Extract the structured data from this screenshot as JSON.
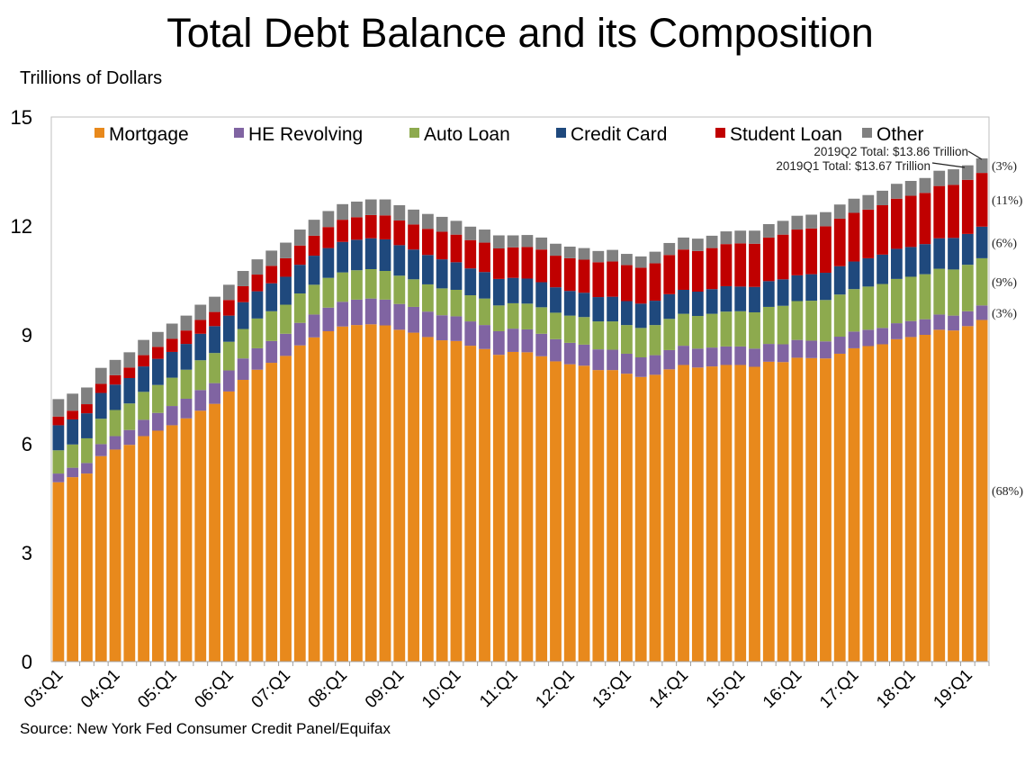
{
  "chart_data": {
    "type": "bar",
    "stacked": true,
    "title": "Total Debt Balance and its Composition",
    "ylabel": "Trillions of Dollars",
    "xlabel": "",
    "ylim": [
      0,
      15
    ],
    "yticks": [
      "0",
      "3",
      "6",
      "9",
      "12",
      "15"
    ],
    "grid": false,
    "legend_placement": "top",
    "source": "Source: New York Fed Consumer Credit Panel/Equifax",
    "xtick_labels": [
      "03:Q1",
      "04:Q1",
      "05:Q1",
      "06:Q1",
      "07:Q1",
      "08:Q1",
      "09:Q1",
      "10:Q1",
      "11:Q1",
      "12:Q1",
      "13:Q1",
      "14:Q1",
      "15:Q1",
      "16:Q1",
      "17:Q1",
      "18:Q1",
      "19:Q1"
    ],
    "first_quarter": "03:Q1",
    "quarters_count_note": "",
    "series": [
      {
        "name": "Mortgage",
        "color": "#E8891C",
        "share_label": "(68%)",
        "values": [
          4.94,
          5.08,
          5.18,
          5.66,
          5.84,
          5.97,
          6.21,
          6.36,
          6.51,
          6.7,
          6.91,
          7.1,
          7.44,
          7.76,
          8.04,
          8.23,
          8.42,
          8.71,
          8.93,
          9.1,
          9.23,
          9.27,
          9.29,
          9.26,
          9.14,
          9.06,
          8.94,
          8.85,
          8.83,
          8.7,
          8.61,
          8.45,
          8.53,
          8.52,
          8.41,
          8.27,
          8.19,
          8.15,
          8.03,
          8.03,
          7.93,
          7.84,
          7.9,
          8.05,
          8.17,
          8.1,
          8.13,
          8.17,
          8.17,
          8.12,
          8.26,
          8.25,
          8.37,
          8.36,
          8.35,
          8.48,
          8.63,
          8.69,
          8.74,
          8.88,
          8.94,
          9.0,
          9.14,
          9.12,
          9.24,
          9.41
        ]
      },
      {
        "name": "HE Revolving",
        "color": "#8064A2",
        "share_label": "(3%)",
        "values": [
          0.24,
          0.26,
          0.29,
          0.33,
          0.37,
          0.41,
          0.45,
          0.49,
          0.53,
          0.54,
          0.57,
          0.57,
          0.58,
          0.59,
          0.59,
          0.6,
          0.61,
          0.62,
          0.63,
          0.65,
          0.68,
          0.7,
          0.71,
          0.71,
          0.71,
          0.71,
          0.7,
          0.69,
          0.68,
          0.67,
          0.66,
          0.65,
          0.64,
          0.63,
          0.62,
          0.61,
          0.59,
          0.58,
          0.57,
          0.56,
          0.55,
          0.54,
          0.54,
          0.53,
          0.53,
          0.52,
          0.52,
          0.51,
          0.51,
          0.5,
          0.49,
          0.49,
          0.49,
          0.48,
          0.47,
          0.47,
          0.46,
          0.45,
          0.45,
          0.44,
          0.44,
          0.43,
          0.42,
          0.41,
          0.41,
          0.4
        ]
      },
      {
        "name": "Auto Loan",
        "color": "#8DAA4E",
        "share_label": "(9%)",
        "values": [
          0.64,
          0.64,
          0.68,
          0.7,
          0.72,
          0.73,
          0.77,
          0.77,
          0.78,
          0.8,
          0.82,
          0.83,
          0.79,
          0.81,
          0.82,
          0.82,
          0.8,
          0.81,
          0.82,
          0.82,
          0.81,
          0.81,
          0.81,
          0.79,
          0.78,
          0.76,
          0.75,
          0.74,
          0.73,
          0.72,
          0.73,
          0.71,
          0.7,
          0.71,
          0.73,
          0.73,
          0.75,
          0.76,
          0.77,
          0.78,
          0.79,
          0.81,
          0.83,
          0.86,
          0.88,
          0.9,
          0.93,
          0.96,
          0.97,
          1.0,
          1.02,
          1.06,
          1.07,
          1.1,
          1.14,
          1.16,
          1.17,
          1.19,
          1.21,
          1.22,
          1.22,
          1.24,
          1.26,
          1.27,
          1.28,
          1.3
        ]
      },
      {
        "name": "Credit Card",
        "color": "#1F497D",
        "share_label": "(6%)",
        "values": [
          0.69,
          0.69,
          0.69,
          0.71,
          0.7,
          0.7,
          0.7,
          0.72,
          0.71,
          0.71,
          0.73,
          0.74,
          0.72,
          0.74,
          0.75,
          0.77,
          0.77,
          0.79,
          0.8,
          0.82,
          0.84,
          0.84,
          0.85,
          0.87,
          0.84,
          0.82,
          0.81,
          0.8,
          0.76,
          0.74,
          0.73,
          0.73,
          0.7,
          0.69,
          0.69,
          0.7,
          0.68,
          0.67,
          0.67,
          0.68,
          0.66,
          0.67,
          0.67,
          0.68,
          0.66,
          0.67,
          0.68,
          0.7,
          0.68,
          0.7,
          0.71,
          0.73,
          0.71,
          0.73,
          0.75,
          0.78,
          0.76,
          0.78,
          0.81,
          0.83,
          0.82,
          0.83,
          0.84,
          0.87,
          0.85,
          0.87
        ]
      },
      {
        "name": "Student Loan",
        "color": "#C00000",
        "share_label": "(11%)",
        "values": [
          0.24,
          0.24,
          0.25,
          0.25,
          0.26,
          0.29,
          0.31,
          0.33,
          0.36,
          0.37,
          0.38,
          0.39,
          0.43,
          0.44,
          0.46,
          0.48,
          0.51,
          0.53,
          0.55,
          0.58,
          0.61,
          0.62,
          0.64,
          0.66,
          0.68,
          0.69,
          0.72,
          0.76,
          0.76,
          0.78,
          0.81,
          0.84,
          0.84,
          0.87,
          0.9,
          0.87,
          0.9,
          0.91,
          0.96,
          0.97,
          0.99,
          0.99,
          1.03,
          1.08,
          1.11,
          1.12,
          1.13,
          1.16,
          1.19,
          1.19,
          1.2,
          1.23,
          1.26,
          1.26,
          1.28,
          1.31,
          1.34,
          1.34,
          1.36,
          1.38,
          1.41,
          1.41,
          1.44,
          1.46,
          1.49,
          1.48
        ]
      },
      {
        "name": "Other",
        "color": "#808080",
        "share_label": "(3%)",
        "values": [
          0.48,
          0.47,
          0.46,
          0.44,
          0.42,
          0.42,
          0.42,
          0.41,
          0.42,
          0.41,
          0.42,
          0.42,
          0.42,
          0.42,
          0.42,
          0.42,
          0.43,
          0.44,
          0.44,
          0.44,
          0.43,
          0.43,
          0.43,
          0.44,
          0.42,
          0.41,
          0.41,
          0.41,
          0.38,
          0.37,
          0.36,
          0.36,
          0.33,
          0.33,
          0.33,
          0.33,
          0.32,
          0.32,
          0.31,
          0.32,
          0.31,
          0.31,
          0.32,
          0.33,
          0.33,
          0.34,
          0.34,
          0.35,
          0.35,
          0.36,
          0.37,
          0.38,
          0.38,
          0.38,
          0.39,
          0.39,
          0.39,
          0.4,
          0.4,
          0.41,
          0.41,
          0.41,
          0.42,
          0.43,
          0.4,
          0.4
        ]
      }
    ],
    "annotations": {
      "q2_total": "2019Q2 Total: $13.86 Trillion",
      "q1_total": "2019Q1 Total: $13.67 Trillion"
    }
  }
}
